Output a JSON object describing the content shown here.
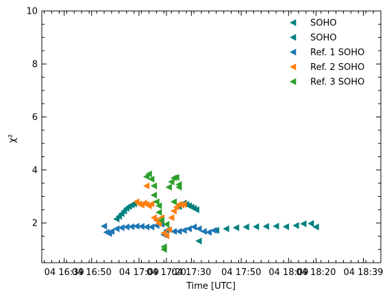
{
  "chart_data": {
    "type": "scatter",
    "xlabel": "Time [UTC]",
    "ylabel": "χ²",
    "xlim": [
      "04 16:30",
      "04 18:46"
    ],
    "ylim": [
      0.5,
      10
    ],
    "x_ticks": [
      "04 16:39",
      "04 16:50",
      "04 17:09",
      "04 17:20",
      "04 17:30",
      "04 17:50",
      "04 18:09",
      "04 18:20",
      "04 18:39"
    ],
    "x_tick_labels": [
      "04 16:39",
      "04 16:50",
      "04 17:09",
      "04 17:20",
      "04 17:30",
      "04 17:50",
      "04 18:09",
      "04 18:20",
      "04 18:39"
    ],
    "y_ticks": [
      2,
      4,
      6,
      8,
      10
    ],
    "y_tick_labels": [
      "2",
      "4",
      "6",
      "8",
      "10"
    ],
    "marker": "triangle-left",
    "legend_position": "top-right",
    "series": [
      {
        "name": "SOHO",
        "color": "#008080",
        "points": [
          [
            "04 17:00",
            2.15
          ],
          [
            "04 17:01",
            2.25
          ],
          [
            "04 17:02",
            2.35
          ],
          [
            "04 17:03",
            2.45
          ],
          [
            "04 17:04",
            2.55
          ],
          [
            "04 17:05",
            2.62
          ],
          [
            "04 17:06",
            2.68
          ],
          [
            "04 17:07",
            2.72
          ],
          [
            "04 17:25",
            2.62
          ],
          [
            "04 17:26",
            2.7
          ],
          [
            "04 17:27",
            2.75
          ],
          [
            "04 17:28",
            2.7
          ],
          [
            "04 17:29",
            2.65
          ],
          [
            "04 17:30",
            2.6
          ],
          [
            "04 17:31",
            2.55
          ],
          [
            "04 17:32",
            2.5
          ],
          [
            "04 17:33",
            1.32
          ],
          [
            "04 17:40",
            1.72
          ],
          [
            "04 17:44",
            1.78
          ],
          [
            "04 17:48",
            1.82
          ],
          [
            "04 17:52",
            1.85
          ],
          [
            "04 17:56",
            1.86
          ],
          [
            "04 18:00",
            1.87
          ],
          [
            "04 18:04",
            1.88
          ],
          [
            "04 18:08",
            1.86
          ],
          [
            "04 18:12",
            1.9
          ],
          [
            "04 18:15",
            1.97
          ],
          [
            "04 18:18",
            1.98
          ],
          [
            "04 18:20",
            1.85
          ]
        ]
      },
      {
        "name": "SOHO",
        "color": "#008080",
        "points": []
      },
      {
        "name": "Ref. 1 SOHO",
        "color": "#1f77b4",
        "points": [
          [
            "04 16:55",
            1.88
          ],
          [
            "04 16:56",
            1.65
          ],
          [
            "04 16:57",
            1.6
          ],
          [
            "04 16:58",
            1.68
          ],
          [
            "04 17:00",
            1.78
          ],
          [
            "04 17:02",
            1.82
          ],
          [
            "04 17:04",
            1.85
          ],
          [
            "04 17:06",
            1.86
          ],
          [
            "04 17:08",
            1.88
          ],
          [
            "04 17:10",
            1.87
          ],
          [
            "04 17:12",
            1.85
          ],
          [
            "04 17:14",
            1.85
          ],
          [
            "04 17:16",
            1.9
          ],
          [
            "04 17:18",
            1.95
          ],
          [
            "04 17:19",
            1.55
          ],
          [
            "04 17:20",
            1.72
          ],
          [
            "04 17:21",
            1.75
          ],
          [
            "04 17:23",
            1.68
          ],
          [
            "04 17:25",
            1.68
          ],
          [
            "04 17:27",
            1.72
          ],
          [
            "04 17:29",
            1.78
          ],
          [
            "04 17:31",
            1.85
          ],
          [
            "04 17:33",
            1.78
          ],
          [
            "04 17:35",
            1.68
          ],
          [
            "04 17:37",
            1.65
          ],
          [
            "04 17:39",
            1.72
          ]
        ]
      },
      {
        "name": "Ref. 2 SOHO",
        "color": "#ff7f0e",
        "points": [
          [
            "04 17:08",
            2.8
          ],
          [
            "04 17:09",
            2.72
          ],
          [
            "04 17:10",
            2.68
          ],
          [
            "04 17:11",
            2.75
          ],
          [
            "04 17:12",
            2.7
          ],
          [
            "04 17:12",
            3.4
          ],
          [
            "04 17:13",
            2.65
          ],
          [
            "04 17:14",
            2.72
          ],
          [
            "04 17:15",
            2.2
          ],
          [
            "04 17:16",
            2.1
          ],
          [
            "04 17:17",
            1.98
          ],
          [
            "04 17:18",
            2.2
          ],
          [
            "04 17:19",
            1.62
          ],
          [
            "04 17:20",
            1.52
          ],
          [
            "04 17:21",
            1.75
          ],
          [
            "04 17:22",
            2.2
          ],
          [
            "04 17:23",
            2.45
          ],
          [
            "04 17:24",
            2.6
          ],
          [
            "04 17:25",
            2.7
          ],
          [
            "04 17:26",
            2.68
          ],
          [
            "04 17:27",
            2.7
          ]
        ]
      },
      {
        "name": "Ref. 3 SOHO",
        "color": "#2ca02c",
        "points": [
          [
            "04 17:12",
            3.75
          ],
          [
            "04 17:13",
            3.85
          ],
          [
            "04 17:14",
            3.65
          ],
          [
            "04 17:15",
            3.4
          ],
          [
            "04 17:15",
            3.05
          ],
          [
            "04 17:16",
            2.8
          ],
          [
            "04 17:17",
            2.65
          ],
          [
            "04 17:17",
            2.4
          ],
          [
            "04 17:18",
            2.1
          ],
          [
            "04 17:19",
            1.0
          ],
          [
            "04 17:19",
            1.1
          ],
          [
            "04 17:20",
            1.95
          ],
          [
            "04 17:21",
            3.35
          ],
          [
            "04 17:22",
            3.55
          ],
          [
            "04 17:23",
            3.7
          ],
          [
            "04 17:24",
            3.72
          ],
          [
            "04 17:25",
            3.45
          ],
          [
            "04 17:25",
            3.35
          ],
          [
            "04 17:23",
            2.8
          ]
        ]
      }
    ]
  }
}
